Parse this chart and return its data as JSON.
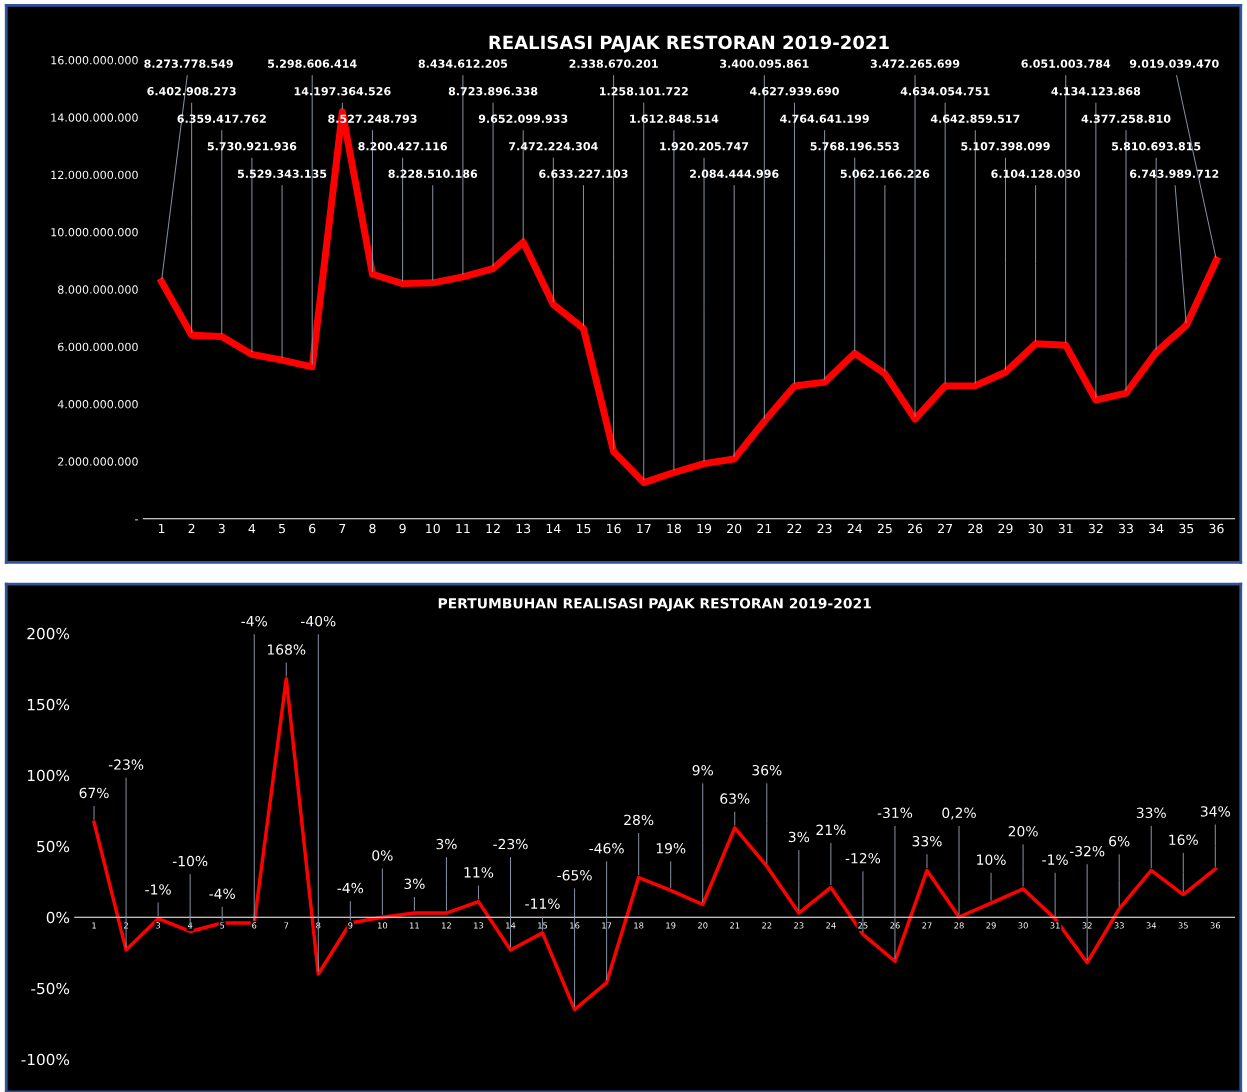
{
  "chart_data": [
    {
      "type": "line",
      "title": "REALISASI PAJAK RESTORAN 2019-2021",
      "categories": [
        "1",
        "2",
        "3",
        "4",
        "5",
        "6",
        "7",
        "8",
        "9",
        "10",
        "11",
        "12",
        "13",
        "14",
        "15",
        "16",
        "17",
        "18",
        "19",
        "20",
        "21",
        "22",
        "23",
        "24",
        "25",
        "26",
        "27",
        "28",
        "29",
        "30",
        "31",
        "32",
        "33",
        "34",
        "35",
        "36"
      ],
      "series": [
        {
          "color": "#ff0000",
          "values": [
            8273778549,
            6402908273,
            6359417762,
            5730921936,
            5529343135,
            5298606414,
            14197364526,
            8527248793,
            8200427116,
            8228510186,
            8434612205,
            8723896338,
            9652099933,
            7472224304,
            6633227103,
            2338670201,
            1258101722,
            1612848514,
            1920205747,
            2084444996,
            3400095861,
            4627939690,
            4764641199,
            5768196553,
            5062166226,
            3472265699,
            4634054751,
            4642859517,
            5107398099,
            6104128030,
            6051003784,
            4134123868,
            4377258810,
            5810693815,
            6743989712,
            9019039470
          ],
          "value_labels": [
            "8.273.778.549",
            "6.402.908.273",
            "6.359.417.762",
            "5.730.921.936",
            "5.529.343.135",
            "5.298.606.414",
            "14.197.364.526",
            "8.527.248.793",
            "8.200.427.116",
            "8.228.510.186",
            "8.434.612.205",
            "8.723.896.338",
            "9.652.099.933",
            "7.472.224.304",
            "6.633.227.103",
            "2.338.670.201",
            "1.258.101.722",
            "1.612.848.514",
            "1.920.205.747",
            "2.084.444.996",
            "3.400.095.861",
            "4.627.939.690",
            "4.764.641.199",
            "5.768.196.553",
            "5.062.166.226",
            "3.472.265.699",
            "4.634.054.751",
            "4.642.859.517",
            "5.107.398.099",
            "6.104.128.030",
            "6.051.003.784",
            "4.134.123.868",
            "4.377.258.810",
            "5.810.693.815",
            "6.743.989.712",
            "9.019.039.470"
          ]
        }
      ],
      "ylim": [
        0,
        16000000000
      ],
      "yticks": [
        {
          "value": 0,
          "label": "-"
        },
        {
          "value": 2000000000,
          "label": "2.000.000.000"
        },
        {
          "value": 4000000000,
          "label": "4.000.000.000"
        },
        {
          "value": 6000000000,
          "label": "6.000.000.000"
        },
        {
          "value": 8000000000,
          "label": "8.000.000.000"
        },
        {
          "value": 10000000000,
          "label": "10.000.000.000"
        },
        {
          "value": 12000000000,
          "label": "12.000.000.000"
        },
        {
          "value": 14000000000,
          "label": "14.000.000.000"
        },
        {
          "value": 16000000000,
          "label": "16.000.000.000"
        }
      ],
      "grid": false,
      "marker": "none",
      "line_style": "solid"
    },
    {
      "type": "line",
      "title": "PERTUMBUHAN REALISASI PAJAK RESTORAN 2019-2021",
      "categories": [
        "1",
        "2",
        "3",
        "4",
        "5",
        "6",
        "7",
        "8",
        "9",
        "10",
        "11",
        "12",
        "13",
        "14",
        "15",
        "16",
        "17",
        "18",
        "19",
        "20",
        "21",
        "22",
        "23",
        "24",
        "25",
        "26",
        "27",
        "28",
        "29",
        "30",
        "31",
        "32",
        "33",
        "34",
        "35",
        "36"
      ],
      "series": [
        {
          "color": "#ff0000",
          "values": [
            67,
            -23,
            -1,
            -10,
            -4,
            -4,
            168,
            -40,
            -4,
            0,
            3,
            3,
            11,
            -23,
            -11,
            -65,
            -46,
            28,
            19,
            9,
            63,
            36,
            3,
            21,
            -12,
            -31,
            33,
            0.2,
            10,
            20,
            -1,
            -32,
            6,
            33,
            16,
            34
          ],
          "value_labels": [
            "67%",
            "-23%",
            "-1%",
            "-10%",
            "-4%",
            "-4%",
            "168%",
            "-40%",
            "-4%",
            "0%",
            "3%",
            "3%",
            "11%",
            "-23%",
            "-11%",
            "-65%",
            "-46%",
            "28%",
            "19%",
            "9%",
            "63%",
            "36%",
            "3%",
            "21%",
            "-12%",
            "-31%",
            "33%",
            "0,2%",
            "10%",
            "20%",
            "-1%",
            "-32%",
            "6%",
            "33%",
            "16%",
            "34%"
          ]
        }
      ],
      "ylim": [
        -100,
        200
      ],
      "yticks": [
        {
          "value": -100,
          "label": "-100%"
        },
        {
          "value": -50,
          "label": "-50%"
        },
        {
          "value": 0,
          "label": "0%"
        },
        {
          "value": 50,
          "label": "50%"
        },
        {
          "value": 100,
          "label": "100%"
        },
        {
          "value": 150,
          "label": "150%"
        },
        {
          "value": 200,
          "label": "200%"
        }
      ],
      "grid": false,
      "marker": "none",
      "line_style": "solid"
    }
  ]
}
